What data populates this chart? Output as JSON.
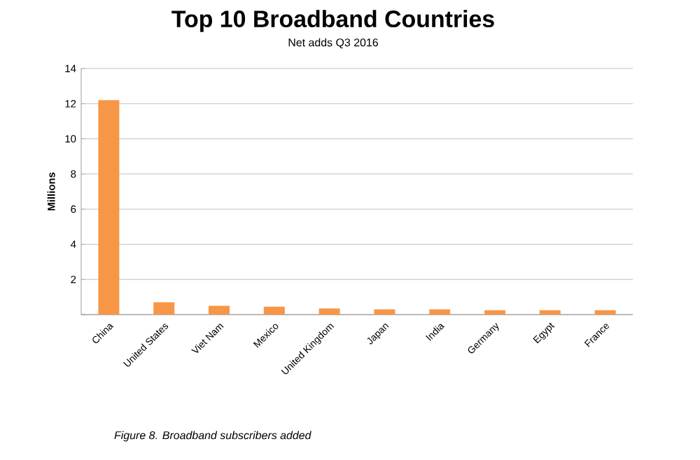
{
  "chart_data": {
    "type": "bar",
    "title": "Top 10 Broadband Countries",
    "subtitle": "Net adds Q3 2016",
    "ylabel": "Millions",
    "categories": [
      "China",
      "United States",
      "Viet Nam",
      "Mexico",
      "United Kingdom",
      "Japan",
      "India",
      "Germany",
      "Egypt",
      "France"
    ],
    "values": [
      12.2,
      0.7,
      0.5,
      0.45,
      0.35,
      0.3,
      0.3,
      0.25,
      0.25,
      0.25
    ],
    "color": "#f79646",
    "ylim": [
      0,
      14
    ],
    "yticks": [
      {
        "value": 0,
        "label": null
      },
      2,
      4,
      6,
      8,
      10,
      12,
      14
    ],
    "grid": "y",
    "annotations": [
      "*Figure 8. Broadband subscribers added*"
    ]
  }
}
